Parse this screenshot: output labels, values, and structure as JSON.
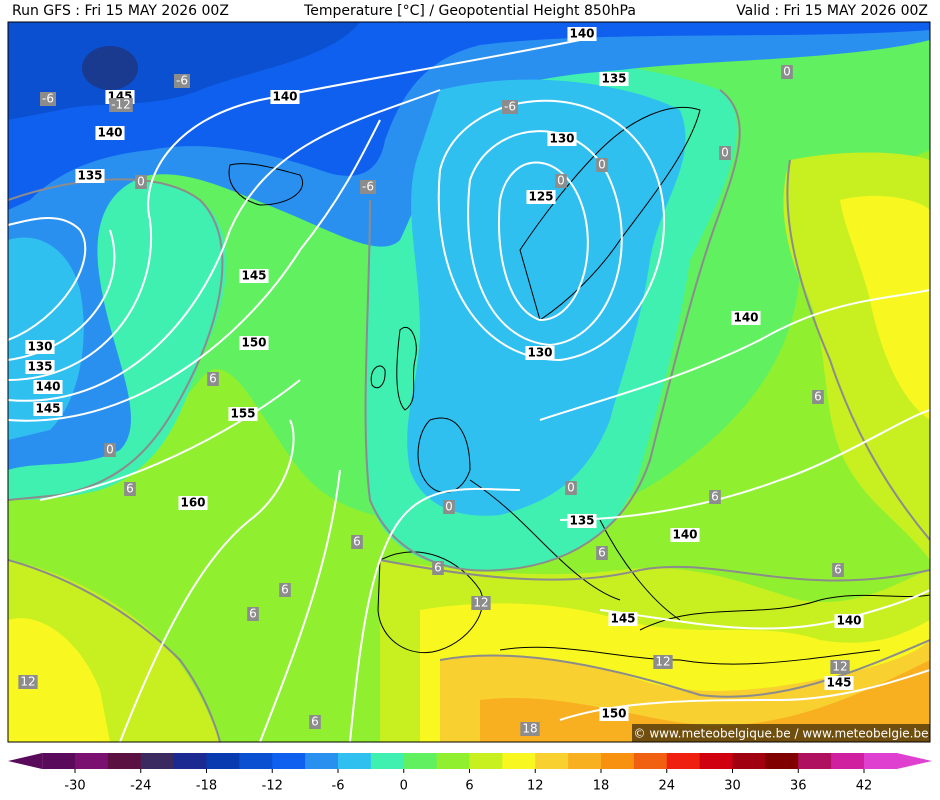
{
  "header": {
    "run": "Run GFS : Fri 15 MAY 2026 00Z",
    "title": "Temperature [°C] / Geopotential Height 850hPa",
    "valid": "Valid : Fri 15 MAY 2026 00Z"
  },
  "map": {
    "height_labels": [
      "140",
      "135",
      "140",
      "145",
      "140",
      "135",
      "130",
      "125",
      "145",
      "150",
      "155",
      "160",
      "130",
      "135",
      "140",
      "145",
      "130",
      "140",
      "135",
      "140",
      "145",
      "140",
      "145",
      "150"
    ],
    "temperature_labels": [
      "-6",
      "-12",
      "-6",
      "-6",
      "-6",
      "0",
      "0",
      "0",
      "0",
      "0",
      "0",
      "0",
      "0",
      "6",
      "6",
      "6",
      "6",
      "6",
      "6",
      "6",
      "6",
      "6",
      "6",
      "6",
      "12",
      "12",
      "12",
      "12",
      "18"
    ]
  },
  "credit": "© www.meteobelgique.be / www.meteobelgie.be",
  "colorbar": {
    "ticks": [
      -30,
      -24,
      -18,
      -12,
      -6,
      0,
      6,
      12,
      18,
      24,
      30,
      36,
      42
    ]
  }
}
